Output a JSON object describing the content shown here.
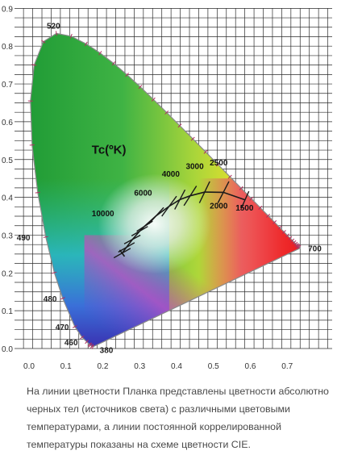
{
  "chart_data": {
    "type": "diagram",
    "title": "",
    "xlabel": "",
    "ylabel": "",
    "xlim": [
      0,
      0.8
    ],
    "ylim": [
      0,
      0.9
    ],
    "grid": true,
    "x_ticks": [
      "0.0",
      "0.1",
      "0.2",
      "0.3",
      "0.4",
      "0.5",
      "0.6",
      "0.7"
    ],
    "y_ticks": [
      "0.0",
      "0.1",
      "0.2",
      "0.3",
      "0.4",
      "0.5",
      "0.6",
      "0.7",
      "0.8",
      "0.9"
    ],
    "spectral_locus": [
      [
        0.1741,
        0.005
      ],
      [
        0.173,
        0.0048
      ],
      [
        0.1703,
        0.0058
      ],
      [
        0.1666,
        0.0089
      ],
      [
        0.1644,
        0.0109
      ],
      [
        0.1566,
        0.0177
      ],
      [
        0.144,
        0.0297
      ],
      [
        0.1241,
        0.0578
      ],
      [
        0.0913,
        0.1327
      ],
      [
        0.0687,
        0.2007
      ],
      [
        0.0454,
        0.295
      ],
      [
        0.0235,
        0.4127
      ],
      [
        0.0082,
        0.5384
      ],
      [
        0.0039,
        0.6548
      ],
      [
        0.0139,
        0.7502
      ],
      [
        0.0389,
        0.812
      ],
      [
        0.0743,
        0.8338
      ],
      [
        0.1142,
        0.8262
      ],
      [
        0.1547,
        0.8059
      ],
      [
        0.1929,
        0.7816
      ],
      [
        0.2296,
        0.7543
      ],
      [
        0.2658,
        0.7243
      ],
      [
        0.3016,
        0.6923
      ],
      [
        0.3373,
        0.6589
      ],
      [
        0.3731,
        0.6245
      ],
      [
        0.4087,
        0.5896
      ],
      [
        0.4441,
        0.5547
      ],
      [
        0.4788,
        0.5202
      ],
      [
        0.5125,
        0.4866
      ],
      [
        0.5448,
        0.4544
      ],
      [
        0.5752,
        0.4242
      ],
      [
        0.6029,
        0.3965
      ],
      [
        0.627,
        0.3725
      ],
      [
        0.6482,
        0.3514
      ],
      [
        0.6658,
        0.334
      ],
      [
        0.6801,
        0.3197
      ],
      [
        0.6915,
        0.3083
      ],
      [
        0.7006,
        0.2993
      ],
      [
        0.7079,
        0.292
      ],
      [
        0.714,
        0.2859
      ],
      [
        0.719,
        0.2809
      ],
      [
        0.723,
        0.277
      ],
      [
        0.726,
        0.274
      ],
      [
        0.7283,
        0.2717
      ],
      [
        0.73,
        0.27
      ],
      [
        0.732,
        0.268
      ],
      [
        0.7347,
        0.2653
      ]
    ],
    "wavelength_labels": [
      {
        "text": "520",
        "x": 0.0743,
        "y": 0.8338
      },
      {
        "text": "490",
        "x": 0.0454,
        "y": 0.295
      },
      {
        "text": "480",
        "x": 0.0913,
        "y": 0.1327
      },
      {
        "text": "470",
        "x": 0.1241,
        "y": 0.0578
      },
      {
        "text": "460",
        "x": 0.144,
        "y": 0.0297
      },
      {
        "text": "380",
        "x": 0.1741,
        "y": 0.005
      },
      {
        "text": "700",
        "x": 0.7347,
        "y": 0.2653
      }
    ],
    "planckian_locus": [
      [
        0.2524,
        0.2522
      ],
      [
        0.2637,
        0.2672
      ],
      [
        0.2802,
        0.2883
      ],
      [
        0.3,
        0.3106
      ],
      [
        0.3135,
        0.3237
      ],
      [
        0.3451,
        0.3516
      ],
      [
        0.3805,
        0.3768
      ],
      [
        0.4091,
        0.3941
      ],
      [
        0.4369,
        0.4041
      ],
      [
        0.4762,
        0.4138
      ],
      [
        0.5268,
        0.4133
      ],
      [
        0.5857,
        0.3931
      ]
    ],
    "isotherms": [
      [
        [
          0.23,
          0.24
        ],
        [
          0.275,
          0.265
        ]
      ],
      [
        [
          0.242,
          0.255
        ],
        [
          0.286,
          0.28
        ]
      ],
      [
        [
          0.258,
          0.277
        ],
        [
          0.302,
          0.3
        ]
      ],
      [
        [
          0.278,
          0.298
        ],
        [
          0.322,
          0.323
        ]
      ],
      [
        [
          0.292,
          0.31
        ],
        [
          0.335,
          0.337
        ]
      ],
      [
        [
          0.325,
          0.33
        ],
        [
          0.365,
          0.373
        ]
      ],
      [
        [
          0.36,
          0.35
        ],
        [
          0.4,
          0.403
        ]
      ],
      [
        [
          0.395,
          0.368
        ],
        [
          0.423,
          0.42
        ]
      ],
      [
        [
          0.42,
          0.378
        ],
        [
          0.454,
          0.43
        ]
      ],
      [
        [
          0.462,
          0.385
        ],
        [
          0.49,
          0.442
        ]
      ],
      [
        [
          0.512,
          0.385
        ],
        [
          0.542,
          0.442
        ]
      ],
      [
        [
          0.575,
          0.37
        ],
        [
          0.596,
          0.416
        ]
      ]
    ],
    "temperature_labels": [
      {
        "text": "10000",
        "x": 0.17,
        "y": 0.35
      },
      {
        "text": "6000",
        "x": 0.285,
        "y": 0.405
      },
      {
        "text": "4000",
        "x": 0.36,
        "y": 0.455
      },
      {
        "text": "3000",
        "x": 0.425,
        "y": 0.475
      },
      {
        "text": "2500",
        "x": 0.49,
        "y": 0.485
      },
      {
        "text": "2000",
        "x": 0.49,
        "y": 0.37
      },
      {
        "text": "1500",
        "x": 0.56,
        "y": 0.365
      }
    ],
    "axis_label_tc": "Tc(ºK)",
    "axis_label_tc_pos": {
      "x": 0.17,
      "y": 0.515
    }
  },
  "caption": "На линии цветности Планка представлены цветности абсолютно черных тел (источников света) с различными цветовыми температурами, а линии постоянной коррелированной температуры показаны на схеме цветности CIE."
}
